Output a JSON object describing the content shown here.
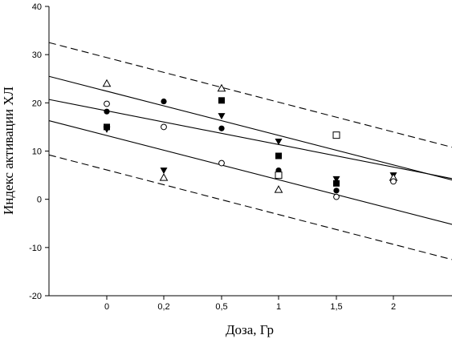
{
  "chart_data": {
    "type": "scatter",
    "xlabel": "Доза, Гр",
    "ylabel": "Индекс активации ХЛ",
    "ylim": [
      -20,
      40
    ],
    "yticks": [
      -20,
      -10,
      0,
      10,
      20,
      30,
      40
    ],
    "xtick_labels": [
      "0",
      "0,2",
      "0,5",
      "1",
      "1,5",
      "2"
    ],
    "xlim": [
      -0.8,
      5.2
    ],
    "grid": false,
    "legend": "none",
    "points": [
      {
        "x": 0,
        "y": 24,
        "marker": "triangle-open"
      },
      {
        "x": 0,
        "y": 19.8,
        "marker": "circle-open"
      },
      {
        "x": 0,
        "y": 18.2,
        "marker": "circle-filled"
      },
      {
        "x": 0,
        "y": 15,
        "marker": "square-filled"
      },
      {
        "x": 0,
        "y": 14.5,
        "marker": "triangle-down-filled"
      },
      {
        "x": 1,
        "y": 20.3,
        "marker": "circle-filled"
      },
      {
        "x": 1,
        "y": 15,
        "marker": "circle-open"
      },
      {
        "x": 1,
        "y": 6,
        "marker": "triangle-down-filled"
      },
      {
        "x": 1,
        "y": 4.5,
        "marker": "triangle-open"
      },
      {
        "x": 2,
        "y": 23,
        "marker": "triangle-open"
      },
      {
        "x": 2,
        "y": 20.5,
        "marker": "square-filled"
      },
      {
        "x": 2,
        "y": 17.3,
        "marker": "triangle-down-filled"
      },
      {
        "x": 2,
        "y": 14.7,
        "marker": "circle-filled"
      },
      {
        "x": 2,
        "y": 7.5,
        "marker": "circle-open"
      },
      {
        "x": 3,
        "y": 12,
        "marker": "triangle-down-filled"
      },
      {
        "x": 3,
        "y": 9,
        "marker": "square-filled"
      },
      {
        "x": 3,
        "y": 6,
        "marker": "circle-filled"
      },
      {
        "x": 3,
        "y": 5,
        "marker": "square-open"
      },
      {
        "x": 3,
        "y": 2,
        "marker": "triangle-open"
      },
      {
        "x": 4,
        "y": 13.3,
        "marker": "square-open"
      },
      {
        "x": 4,
        "y": 4.2,
        "marker": "triangle-down-filled"
      },
      {
        "x": 4,
        "y": 3.3,
        "marker": "square-filled"
      },
      {
        "x": 4,
        "y": 1.8,
        "marker": "circle-filled"
      },
      {
        "x": 4,
        "y": 0.5,
        "marker": "circle-open"
      },
      {
        "x": 5,
        "y": 5,
        "marker": "triangle-down-filled"
      },
      {
        "x": 5,
        "y": 4.5,
        "marker": "triangle-open"
      },
      {
        "x": 5,
        "y": 3.7,
        "marker": "circle-open"
      }
    ],
    "lines": [
      {
        "kind": "regression",
        "style": "solid",
        "y_at_xmin": 20.7,
        "y_at_xmax": 4.3
      },
      {
        "kind": "confidence-upper",
        "style": "solid",
        "y_at_xmin": 25.5,
        "y_at_xmax": 4.0
      },
      {
        "kind": "confidence-lower",
        "style": "solid",
        "y_at_xmin": 16.3,
        "y_at_xmax": -5.2
      },
      {
        "kind": "prediction-upper",
        "style": "dashed",
        "y_at_xmin": 32.5,
        "y_at_xmax": 10.8
      },
      {
        "kind": "prediction-lower",
        "style": "dashed",
        "y_at_xmin": 9.2,
        "y_at_xmax": -12.5
      }
    ]
  }
}
